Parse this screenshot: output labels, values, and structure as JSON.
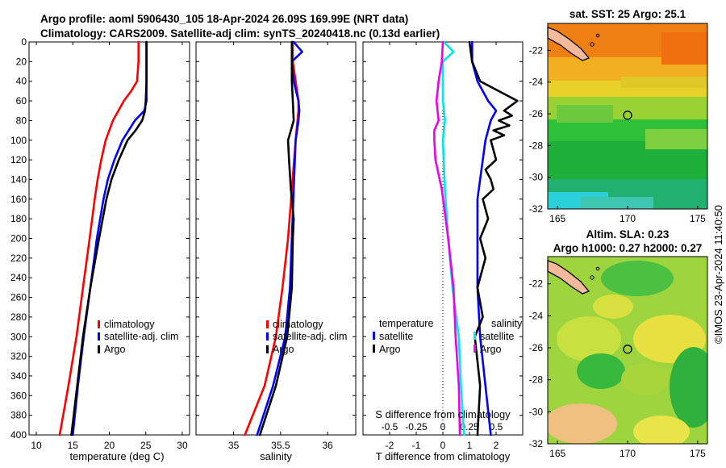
{
  "titles": {
    "line1": "Argo profile: aoml 5906430_105 18-Apr-2024 26.09S 169.99E (NRT data)",
    "line2": "Climatology: CARS2009. Satellite-adj clim: synTS_20240418.nc (0.13d earlier)",
    "map1": "sat. SST: 25 Argo: 25.1",
    "map2a": "Altim. SLA: 0.23",
    "map2b": "Argo h1000: 0.27 h2000: 0.27"
  },
  "timestamp": "©IMOS 23-Apr-2024 11:40:50",
  "colors": {
    "clim": "#ff0000",
    "sat": "#0000ff",
    "argo": "#000000",
    "sat_s": "#00e5ee",
    "argo_s": "#ee00ee"
  },
  "chart_data": [
    {
      "id": "temp",
      "type": "line",
      "xlabel": "temperature (deg C)",
      "ylabel": "",
      "xlim": [
        9,
        31
      ],
      "ylim": [
        400,
        0
      ],
      "xticks": [
        10,
        15,
        20,
        25,
        30
      ],
      "yticks": [
        0,
        20,
        40,
        60,
        80,
        100,
        120,
        140,
        160,
        180,
        200,
        220,
        240,
        260,
        280,
        300,
        320,
        340,
        360,
        380,
        400
      ],
      "legend": [
        "climatology",
        "satellite-adj. clim",
        "Argo"
      ],
      "legend_position": "right",
      "series": [
        {
          "name": "climatology",
          "depth": [
            0,
            20,
            40,
            50,
            60,
            80,
            100,
            120,
            140,
            160,
            200,
            250,
            300,
            350,
            400
          ],
          "values": [
            24,
            24,
            23.8,
            23,
            22,
            20.5,
            19.5,
            18.9,
            18.4,
            18,
            17.3,
            16.4,
            15.5,
            14.4,
            13.2
          ]
        },
        {
          "name": "satellite-adj. clim",
          "depth": [
            0,
            20,
            40,
            60,
            70,
            80,
            100,
            120,
            140,
            160,
            200,
            250,
            300,
            350,
            400
          ],
          "values": [
            25.1,
            25.1,
            25.1,
            25.1,
            24.8,
            23.5,
            21.8,
            20.7,
            19.8,
            19.2,
            18.3,
            17.4,
            16.5,
            15.7,
            15
          ]
        },
        {
          "name": "Argo",
          "depth": [
            0,
            20,
            40,
            60,
            70,
            80,
            90,
            100,
            120,
            140,
            160,
            200,
            250,
            300,
            350,
            400
          ],
          "values": [
            25.1,
            25.1,
            25.1,
            25,
            24.9,
            24.5,
            23.6,
            22.5,
            21.3,
            20.3,
            19.6,
            18.6,
            17.4,
            16.4,
            15.6,
            14.8
          ]
        }
      ]
    },
    {
      "id": "salt",
      "type": "line",
      "xlabel": "salinity",
      "ylabel": "",
      "xlim": [
        34.6,
        36.3
      ],
      "ylim": [
        400,
        0
      ],
      "xticks": [
        35,
        35.5,
        36
      ],
      "xticklabels": [
        "35",
        "35.5",
        "36"
      ],
      "legend": [
        "climatology",
        "satellite-adj. clim",
        "Argo"
      ],
      "legend_position": "right",
      "series": [
        {
          "name": "climatology",
          "depth": [
            0,
            20,
            40,
            60,
            70,
            80,
            100,
            150,
            200,
            250,
            300,
            350,
            400
          ],
          "values": [
            35.63,
            35.63,
            35.66,
            35.69,
            35.69,
            35.68,
            35.66,
            35.62,
            35.58,
            35.52,
            35.45,
            35.33,
            35.12
          ]
        },
        {
          "name": "satellite-adj. clim",
          "depth": [
            0,
            10,
            20,
            40,
            60,
            70,
            80,
            100,
            150,
            200,
            250,
            300,
            350,
            400
          ],
          "values": [
            35.64,
            35.73,
            35.62,
            35.64,
            35.69,
            35.7,
            35.69,
            35.66,
            35.64,
            35.62,
            35.6,
            35.55,
            35.42,
            35.25
          ]
        },
        {
          "name": "Argo",
          "depth": [
            0,
            20,
            40,
            60,
            80,
            100,
            120,
            150,
            180,
            200,
            250,
            300,
            350,
            400
          ],
          "values": [
            35.62,
            35.62,
            35.62,
            35.63,
            35.64,
            35.58,
            35.59,
            35.61,
            35.64,
            35.63,
            35.62,
            35.57,
            35.45,
            35.28
          ]
        }
      ]
    },
    {
      "id": "diff",
      "type": "line",
      "xlabel": "T difference from climatology",
      "top_label": "S difference from climatology",
      "xlim": [
        -3,
        3
      ],
      "ylim": [
        400,
        0
      ],
      "xticks": [
        -2,
        -1,
        0,
        1,
        2
      ],
      "s_ticks": [
        -0.5,
        -0.25,
        0,
        0.25,
        0.5
      ],
      "s_ticklabels": [
        "-0.5",
        "-0.25",
        "0",
        "0.25",
        "0.5"
      ],
      "legend_left_title": "temperature",
      "legend_left": [
        "satellite",
        "Argo"
      ],
      "legend_right_title": "salinity",
      "legend_right": [
        "satellite",
        "Argo"
      ],
      "series": [
        {
          "name": "temperature satellite",
          "depth": [
            0,
            20,
            40,
            60,
            70,
            80,
            100,
            120,
            140,
            160,
            200,
            250,
            300,
            350,
            400
          ],
          "values": [
            1.1,
            1.1,
            1.3,
            1.7,
            2.0,
            1.8,
            1.6,
            1.5,
            1.4,
            1.3,
            1.3,
            1.3,
            1.4,
            1.6,
            1.8
          ]
        },
        {
          "name": "temperature Argo",
          "depth": [
            0,
            20,
            40,
            60,
            70,
            75,
            80,
            85,
            90,
            95,
            100,
            110,
            120,
            130,
            140,
            150,
            160,
            180,
            200,
            220,
            250,
            280,
            300,
            350,
            400
          ],
          "values": [
            1.0,
            1.1,
            1.4,
            2.8,
            2.3,
            2.6,
            2.1,
            2.5,
            1.9,
            2.3,
            1.8,
            1.9,
            2.0,
            1.6,
            1.8,
            1.9,
            1.5,
            1.7,
            1.4,
            1.6,
            1.3,
            1.5,
            1.2,
            1.4,
            1.3
          ]
        },
        {
          "name": "salinity satellite",
          "depth": [
            0,
            10,
            20,
            40,
            60,
            80,
            100,
            150,
            200,
            250,
            300,
            350,
            400
          ],
          "values": [
            0.01,
            0.1,
            0.0,
            0.0,
            0.0,
            0.02,
            0.0,
            0.02,
            0.05,
            0.09,
            0.15,
            0.17,
            0.2
          ]
        },
        {
          "name": "salinity Argo",
          "depth": [
            0,
            20,
            40,
            60,
            70,
            80,
            90,
            100,
            120,
            150,
            200,
            250,
            300,
            350,
            400
          ],
          "values": [
            0.0,
            -0.01,
            -0.04,
            -0.06,
            -0.05,
            -0.04,
            -0.08,
            -0.08,
            -0.07,
            -0.01,
            0.05,
            0.1,
            0.12,
            0.15,
            0.16
          ]
        }
      ]
    },
    {
      "id": "map1",
      "type": "heatmap",
      "xticks": [
        165,
        170,
        175
      ],
      "yticks": [
        -22,
        -24,
        -26,
        -28,
        -30,
        -32
      ],
      "xlim": [
        164.3,
        175.7
      ],
      "ylim": [
        -32,
        -20.3
      ],
      "marker": [
        170,
        -26.09
      ]
    },
    {
      "id": "map2",
      "type": "heatmap",
      "xticks": [
        165,
        170,
        175
      ],
      "yticks": [
        -22,
        -24,
        -26,
        -28,
        -30,
        -32
      ],
      "xlim": [
        164.3,
        175.7
      ],
      "ylim": [
        -32,
        -20.3
      ],
      "marker": [
        170,
        -26.09
      ]
    }
  ]
}
